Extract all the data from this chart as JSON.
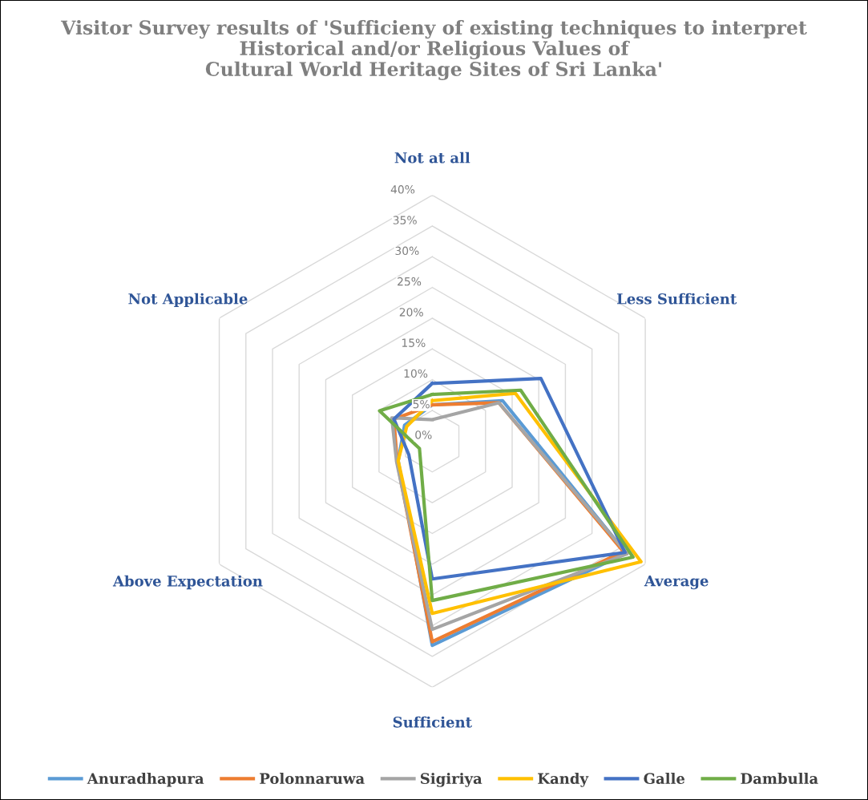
{
  "chart_data": {
    "type": "radar",
    "title": "Visitor Survey results of 'Sufficieny of existing techniques to interpret\nHistorical and/or Religious Values of\nCultural World Heritage Sites of Sri Lanka'",
    "categories": [
      "Not at all",
      "Less Sufficient",
      "Average",
      "Sufficient",
      "Above Expectation",
      "Not Applicable"
    ],
    "ylim": [
      0,
      40
    ],
    "yticks": [
      {
        "value": 0,
        "label": "0%"
      },
      {
        "value": 5,
        "label": "5%"
      },
      {
        "value": 10,
        "label": "10%"
      },
      {
        "value": 15,
        "label": "15%"
      },
      {
        "value": 20,
        "label": "20%"
      },
      {
        "value": 25,
        "label": "25%"
      },
      {
        "value": 30,
        "label": "30%"
      },
      {
        "value": 35,
        "label": "35%"
      },
      {
        "value": 40,
        "label": "40%"
      }
    ],
    "grid": true,
    "legend": "bottom",
    "marker": "none",
    "line_style": "solid",
    "series": [
      {
        "name": "Anuradhapura",
        "color": "#5b9bd5",
        "values": [
          5.9,
          13.2,
          36.4,
          33.2,
          6.4,
          5.2
        ]
      },
      {
        "name": "Polonnaruwa",
        "color": "#ed7d31",
        "values": [
          5.9,
          12.5,
          35.9,
          32.6,
          6.6,
          7.2
        ]
      },
      {
        "name": "Sigiriya",
        "color": "#a5a5a5",
        "values": [
          3.5,
          12.5,
          36.6,
          30.6,
          6.7,
          7.6
        ]
      },
      {
        "name": "Kandy",
        "color": "#ffc000",
        "values": [
          6.6,
          15.6,
          39.2,
          28.0,
          6.4,
          4.8
        ]
      },
      {
        "name": "Galle",
        "color": "#4472c4",
        "values": [
          9.4,
          20.4,
          36.2,
          22.4,
          4.4,
          7.2
        ]
      },
      {
        "name": "Dambulla",
        "color": "#70ad47",
        "values": [
          7.6,
          16.6,
          37.7,
          25.9,
          2.4,
          9.9
        ]
      }
    ]
  }
}
